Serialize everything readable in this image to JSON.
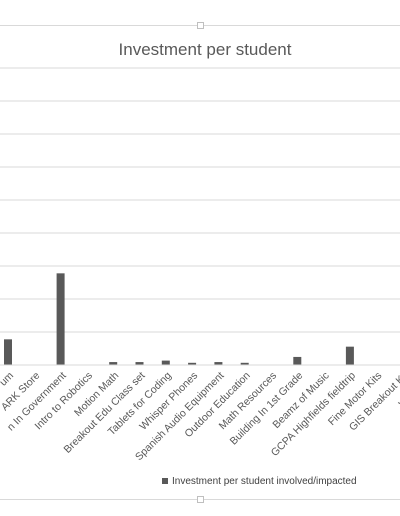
{
  "chart_data": {
    "type": "bar",
    "title": "Investment per student",
    "categories": [
      "Fossilium",
      "MARK Store",
      "Kids in Government",
      "Intro to Robotics",
      "Motion Math",
      "Breakout Edu Class set",
      "Tablets for Coding",
      "Whisper Phones",
      "Spanish Audio Equipment",
      "Outdoor Education",
      "Math Resources",
      "Building in 1st Grade",
      "Beamz of Music",
      "GCPA Highfields fieldtrip",
      "Fine Motor Kits",
      "GIS Breakout Kit",
      "Whoo's Reading"
    ],
    "categories_visible": [
      "um",
      "ARK Store",
      "n In Government",
      "Intro to Robotics",
      "Motion Math",
      "Breakout Edu Class set",
      "Tablets for Coding",
      "Whisper Phones",
      "Spanish Audio Equipment",
      "Outdoor Education",
      "Math Resources",
      "Building In 1st Grade",
      "Beamz of Music",
      "GCPA Highfields fieldtrip",
      "Fine Motor Kits",
      "GIS Breakout Kit",
      "Whoo's R"
    ],
    "series": [
      {
        "name": "Investment per student involved/impacted",
        "values": [
          7,
          0,
          25,
          0,
          0.8,
          0.8,
          1.2,
          0.6,
          0.8,
          0.6,
          0,
          2.2,
          0,
          5,
          0,
          0,
          0
        ]
      }
    ],
    "ylim": [
      0,
      81
    ],
    "grid": true,
    "legend_position": "bottom",
    "colors": {
      "bar": "#595959",
      "grid": "#d9d9d9",
      "text": "#595959"
    }
  }
}
